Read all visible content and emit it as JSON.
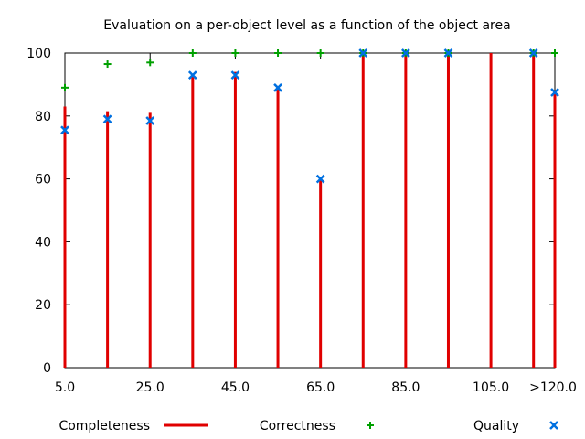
{
  "chart_data": {
    "type": "bar",
    "title": "Evaluation on a per-object level as a function of the object area",
    "xlabel": "",
    "ylabel": "",
    "ylim": [
      0,
      100
    ],
    "yticks": [
      0,
      20,
      40,
      60,
      80,
      100
    ],
    "xlim": [
      5,
      120
    ],
    "xticks": [
      {
        "value": 5,
        "label": "5.0"
      },
      {
        "value": 25,
        "label": "25.0"
      },
      {
        "value": 45,
        "label": "45.0"
      },
      {
        "value": 65,
        "label": "65.0"
      },
      {
        "value": 85,
        "label": "85.0"
      },
      {
        "value": 105,
        "label": "105.0"
      },
      {
        "value": 120,
        "label": ">120.0"
      }
    ],
    "x": [
      5,
      15,
      25,
      35,
      45,
      55,
      65,
      75,
      85,
      95,
      105,
      115,
      120
    ],
    "series": [
      {
        "name": "Completeness",
        "style": "impulses",
        "color": "#e00000",
        "values": [
          83,
          81.5,
          81,
          93,
          94,
          89,
          60,
          100,
          100,
          100,
          100,
          100,
          87.5
        ]
      },
      {
        "name": "Correctness",
        "style": "points-plus",
        "color": "#00a000",
        "values": [
          89,
          96.5,
          97,
          100,
          100,
          100,
          100,
          100,
          100,
          100,
          null,
          100,
          100
        ]
      },
      {
        "name": "Quality",
        "style": "points-x",
        "color": "#0070e0",
        "values": [
          75.5,
          79,
          78.5,
          93,
          93,
          89,
          60,
          100,
          100,
          100,
          null,
          100,
          87.5
        ]
      }
    ],
    "grid": false,
    "legend_position": "bottom"
  }
}
